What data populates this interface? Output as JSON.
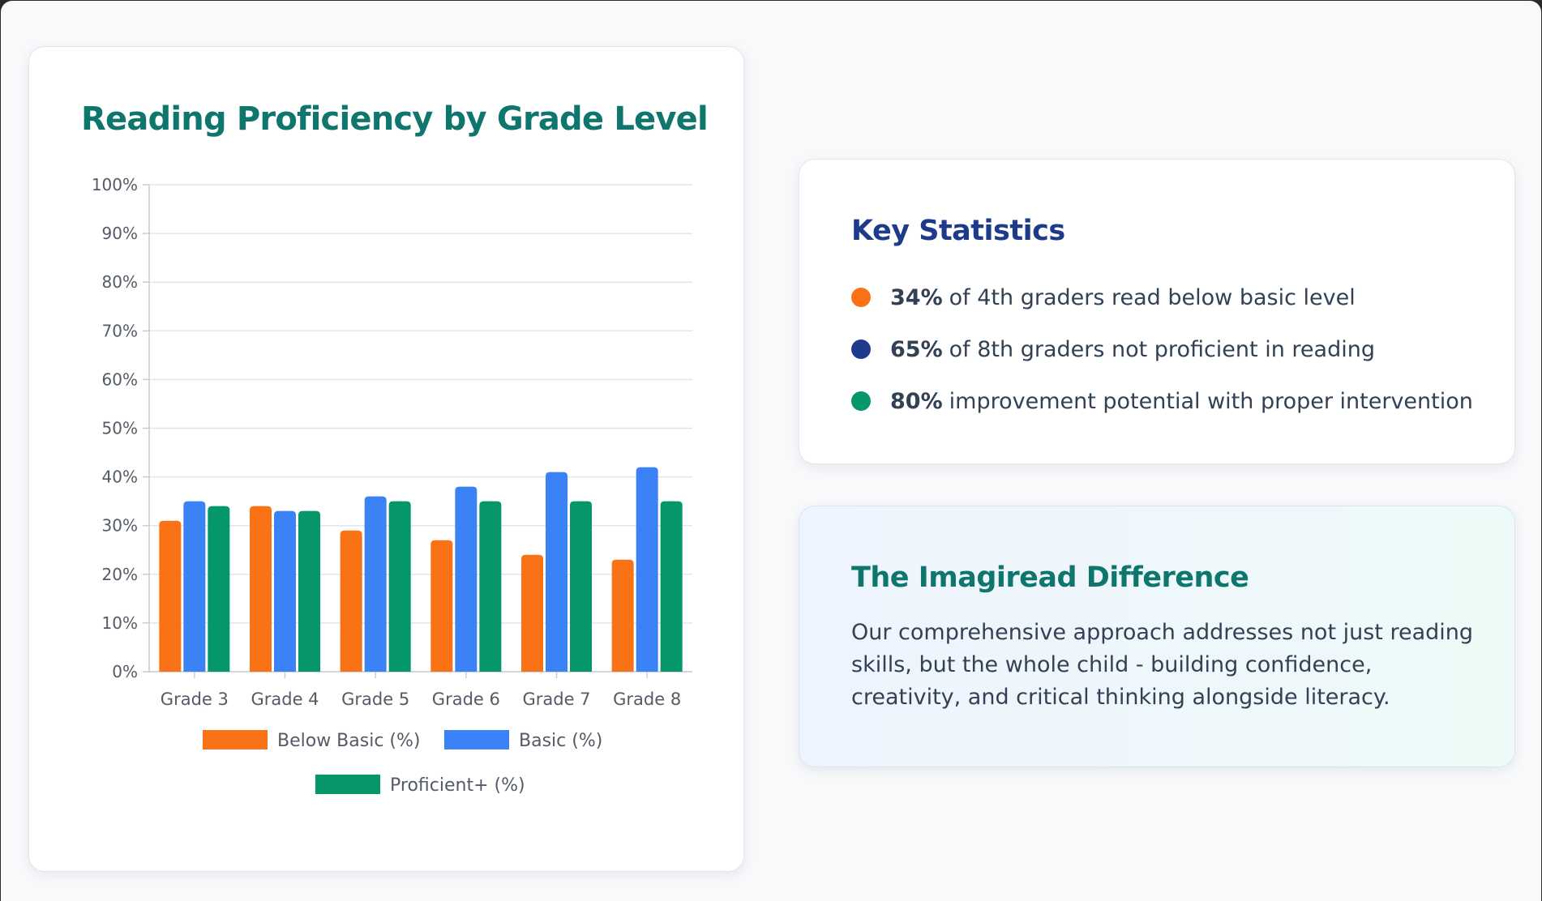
{
  "chart_data": {
    "type": "bar",
    "title": "Reading Proficiency by Grade Level",
    "xlabel": "",
    "ylabel": "",
    "ylim": [
      0,
      100
    ],
    "yticks": [
      "0%",
      "10%",
      "20%",
      "30%",
      "40%",
      "50%",
      "60%",
      "70%",
      "80%",
      "90%",
      "100%"
    ],
    "grid": true,
    "legend_position": "bottom",
    "categories": [
      "Grade 3",
      "Grade 4",
      "Grade 5",
      "Grade 6",
      "Grade 7",
      "Grade 8"
    ],
    "series": [
      {
        "name": "Below Basic (%)",
        "color": "#f97316",
        "values": [
          31,
          34,
          29,
          27,
          24,
          23
        ]
      },
      {
        "name": "Basic (%)",
        "color": "#3b82f6",
        "values": [
          35,
          33,
          36,
          38,
          41,
          42
        ]
      },
      {
        "name": "Proficient+ (%)",
        "color": "#059669",
        "values": [
          34,
          33,
          35,
          35,
          35,
          35
        ]
      }
    ]
  },
  "stats": {
    "title": "Key Statistics",
    "items": [
      {
        "value": "34%",
        "text": "of 4th graders read below basic level",
        "color": "#f97316"
      },
      {
        "value": "65%",
        "text": "of 8th graders not proficient in reading",
        "color": "#1e3a8a"
      },
      {
        "value": "80%",
        "text": "improvement potential with proper intervention",
        "color": "#059669"
      }
    ]
  },
  "difference": {
    "title": "The Imagiread Difference",
    "body": "Our comprehensive approach addresses not just reading skills, but the whole child - building confidence, creativity, and critical thinking alongside literacy."
  }
}
